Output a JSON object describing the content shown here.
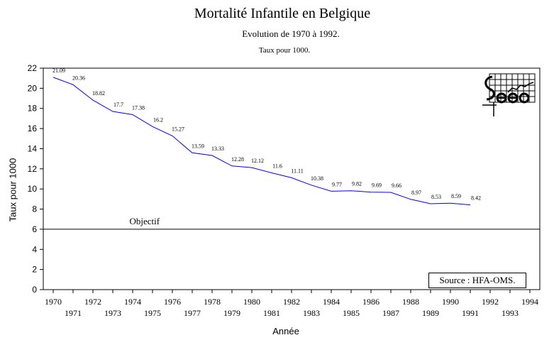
{
  "chart_data": {
    "type": "line",
    "title": "Mortalité Infantile en Belgique",
    "subtitle": "Evolution de 1970 à 1992.",
    "subtitle2": "Taux pour 1000.",
    "xlabel": "Année",
    "ylabel": "Taux pour 1000",
    "x": [
      1970,
      1971,
      1972,
      1973,
      1974,
      1975,
      1976,
      1977,
      1978,
      1979,
      1980,
      1981,
      1982,
      1983,
      1984,
      1985,
      1986,
      1987,
      1988,
      1989,
      1990,
      1991
    ],
    "values": [
      21.09,
      20.36,
      18.82,
      17.7,
      17.38,
      16.2,
      15.27,
      13.59,
      13.33,
      12.28,
      12.12,
      11.6,
      11.11,
      10.38,
      9.77,
      9.82,
      9.69,
      9.66,
      8.97,
      8.53,
      8.59,
      8.42
    ],
    "value_labels": [
      "21.09",
      "20.36",
      "18.82",
      "17.7",
      "17.38",
      "16.2",
      "15.27",
      "13.59",
      "13.33",
      "12.28",
      "12.12",
      "11.6",
      "11.11",
      "10.38",
      "9.77",
      "9.82",
      "9.69",
      "9.66",
      "8.97",
      "8.53",
      "8.59",
      "8.42"
    ],
    "xlim": [
      1969.5,
      1994.5
    ],
    "ylim": [
      0,
      22
    ],
    "y_ticks": [
      0,
      2,
      4,
      6,
      8,
      10,
      12,
      14,
      16,
      18,
      20,
      22
    ],
    "x_ticks_top": [
      "1970",
      "1972",
      "1974",
      "1976",
      "1978",
      "1980",
      "1982",
      "1984",
      "1986",
      "1988",
      "1990",
      "1992",
      "1994"
    ],
    "x_ticks_bottom": [
      "1971",
      "1973",
      "1975",
      "1977",
      "1979",
      "1981",
      "1983",
      "1985",
      "1987",
      "1989",
      "1991",
      "1993"
    ],
    "reference_line": {
      "value": 6,
      "label": "Objectif"
    },
    "source": "Source : HFA-OMS.",
    "line_color": "#0000ff",
    "grid": false
  },
  "logo": {
    "icon": "logo-icon"
  }
}
